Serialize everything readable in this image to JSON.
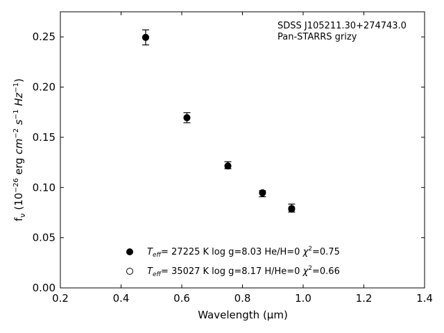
{
  "chart_data": {
    "type": "scatter",
    "xlabel": "Wavelength (μm)",
    "ylabel": "f_ν (10^-26 erg cm^-2 s^-1 Hz^-1)",
    "xlim": [
      0.2,
      1.4
    ],
    "ylim": [
      0.0,
      0.275
    ],
    "xticks": [
      "0.2",
      "0.4",
      "0.6",
      "0.8",
      "1.0",
      "1.2",
      "1.4"
    ],
    "yticks": [
      "0.00",
      "0.05",
      "0.10",
      "0.15",
      "0.20",
      "0.25"
    ],
    "xtick_values": [
      0.2,
      0.4,
      0.6,
      0.8,
      1.0,
      1.2,
      1.4
    ],
    "ytick_values": [
      0.0,
      0.05,
      0.1,
      0.15,
      0.2,
      0.25
    ],
    "grid": false,
    "annotations": [
      "SDSS J105211.30+274743.0",
      "Pan-STARRS grizy"
    ],
    "observed": {
      "x": [
        0.481,
        0.617,
        0.752,
        0.866,
        0.962
      ],
      "y": [
        0.2495,
        0.1695,
        0.1222,
        0.0938,
        0.0795
      ],
      "err": [
        0.0075,
        0.005,
        0.0035,
        0.003,
        0.004
      ]
    },
    "series": [
      {
        "marker": "filled-circle",
        "x": [
          0.481,
          0.617,
          0.752,
          0.866,
          0.962
        ],
        "y": [
          0.2495,
          0.1695,
          0.1215,
          0.0948,
          0.0785
        ]
      },
      {
        "marker": "open-circle",
        "x": [
          0.481,
          0.617,
          0.752,
          0.866,
          0.962
        ],
        "y": [
          0.2495,
          0.1695,
          0.1215,
          0.0945,
          0.0792
        ]
      }
    ],
    "legend": {
      "placement": "bottom-center",
      "entries": [
        {
          "marker": "filled-circle",
          "teff_value": "= 27225 K  log g=8.03  He/H=0  ",
          "chi_value": "=0.75"
        },
        {
          "marker": "open-circle",
          "teff_value": "= 35027 K  log g=8.17  H/He=0  ",
          "chi_value": "=0.66"
        }
      ]
    }
  }
}
